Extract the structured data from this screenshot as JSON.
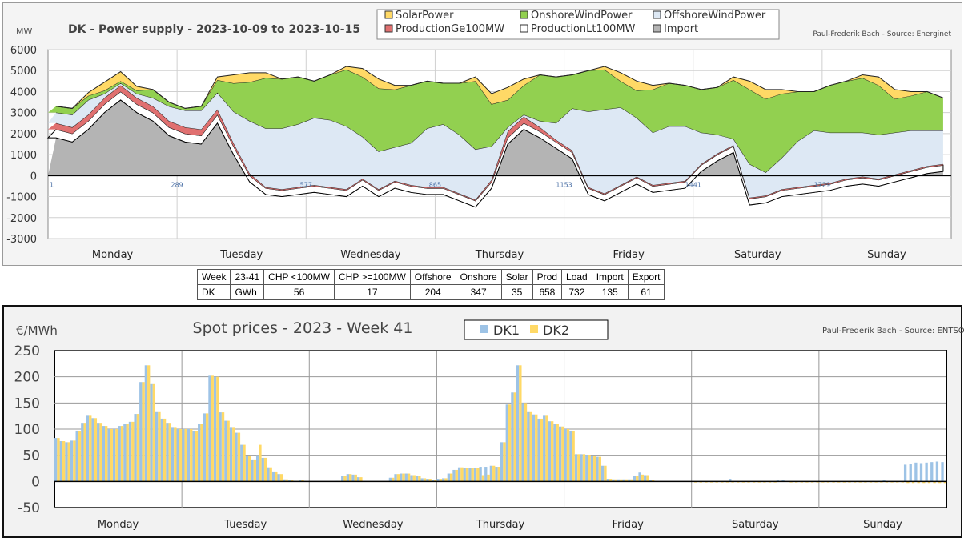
{
  "chart_data": [
    {
      "type": "area",
      "title": "DK - Power supply - 2023-10-09 to 2023-10-15",
      "ylabel": "MW",
      "credit": "Paul-Frederik Bach - Source: Energinet",
      "ylim": [
        -3000,
        6000
      ],
      "yticks": [
        "6000",
        "5000",
        "4000",
        "3000",
        "2000",
        "1000",
        "0",
        "-1000",
        "-2000",
        "-3000"
      ],
      "xticks": [
        "1",
        "289",
        "577",
        "865",
        "1153",
        "1441",
        "1729"
      ],
      "day_labels": [
        "Monday",
        "Tuesday",
        "Wednesday",
        "Thursday",
        "Friday",
        "Saturday",
        "Sunday"
      ],
      "stacked": true,
      "grid": true,
      "legend_position": "top",
      "series": [
        {
          "name": "Import",
          "color": "#b4b4b4",
          "values": [
            1800,
            1600,
            2200,
            3000,
            3600,
            3000,
            2600,
            1900,
            1600,
            1500,
            2500,
            1000,
            -300,
            -900,
            -1000,
            -900,
            -800,
            -900,
            -1000,
            -500,
            -1000,
            -600,
            -800,
            -900,
            -900,
            -1200,
            -1500,
            -600,
            1500,
            2200,
            1800,
            1300,
            800,
            -900,
            -1200,
            -800,
            -400,
            -800,
            -700,
            -600,
            200,
            700,
            1100,
            -1400,
            -1300,
            -1000,
            -900,
            -800,
            -700,
            -500,
            -400,
            -500,
            -300,
            -100,
            100,
            200
          ]
        },
        {
          "name": "ProductionLt100MW",
          "color": "#ffffff",
          "values": [
            400,
            400,
            400,
            400,
            400,
            400,
            400,
            400,
            400,
            400,
            400,
            400,
            300,
            300,
            300,
            300,
            300,
            300,
            300,
            300,
            300,
            300,
            300,
            300,
            300,
            300,
            300,
            300,
            300,
            300,
            300,
            300,
            300,
            300,
            300,
            300,
            300,
            300,
            300,
            300,
            300,
            300,
            300,
            300,
            300,
            300,
            300,
            300,
            300,
            300,
            300,
            300,
            300,
            300,
            300,
            300
          ]
        },
        {
          "name": "ProductionGe100MW",
          "color": "#e07070",
          "values": [
            300,
            300,
            300,
            300,
            300,
            300,
            300,
            300,
            300,
            300,
            250,
            150,
            100,
            50,
            50,
            50,
            50,
            50,
            50,
            50,
            50,
            50,
            50,
            50,
            50,
            50,
            50,
            100,
            300,
            300,
            200,
            100,
            100,
            50,
            50,
            50,
            50,
            50,
            50,
            50,
            50,
            50,
            50,
            50,
            50,
            50,
            50,
            50,
            50,
            50,
            50,
            50,
            50,
            50,
            50,
            50
          ]
        },
        {
          "name": "OffshoreWindPower",
          "color": "#dde8f4",
          "values": [
            500,
            600,
            700,
            200,
            100,
            200,
            400,
            700,
            800,
            900,
            800,
            1500,
            2500,
            2800,
            2900,
            3000,
            3200,
            3200,
            3000,
            2000,
            1800,
            1600,
            2000,
            2800,
            3000,
            2800,
            2400,
            1600,
            200,
            100,
            300,
            800,
            2000,
            3600,
            4000,
            3700,
            2800,
            2500,
            2700,
            2600,
            1500,
            900,
            300,
            1600,
            1100,
            1500,
            2200,
            2600,
            2400,
            2200,
            2100,
            2100,
            2000,
            1900,
            1700,
            1600
          ]
        },
        {
          "name": "OnshoreWindPower",
          "color": "#92d050",
          "values": [
            300,
            300,
            200,
            150,
            100,
            150,
            400,
            200,
            100,
            200,
            600,
            1350,
            1850,
            2400,
            2350,
            2250,
            1750,
            2150,
            2700,
            2850,
            3000,
            2750,
            2750,
            2250,
            1950,
            2450,
            3250,
            2000,
            1300,
            1400,
            2200,
            2200,
            1600,
            1950,
            1900,
            1250,
            1300,
            2050,
            2050,
            1950,
            2050,
            2250,
            2800,
            3550,
            3500,
            3050,
            2350,
            1850,
            2250,
            2450,
            2600,
            2350,
            1600,
            1650,
            1850,
            1550
          ]
        },
        {
          "name": "SolarPower",
          "color": "#ffd966",
          "values": [
            0,
            0,
            150,
            400,
            450,
            200,
            0,
            0,
            0,
            0,
            150,
            400,
            450,
            250,
            0,
            0,
            0,
            0,
            150,
            400,
            450,
            200,
            0,
            0,
            0,
            0,
            200,
            500,
            600,
            300,
            0,
            0,
            0,
            0,
            150,
            400,
            450,
            200,
            0,
            0,
            0,
            0,
            150,
            400,
            450,
            200,
            0,
            0,
            0,
            0,
            150,
            400,
            450,
            200,
            0,
            0
          ]
        }
      ],
      "legend": [
        "SolarPower",
        "OnshoreWindPower",
        "OffshoreWindPower",
        "ProductionGe100MW",
        "ProductionLt100MW",
        "Import"
      ]
    },
    {
      "type": "bar",
      "title": "Spot prices - 2023 - Week 41",
      "ylabel": "€/MWh",
      "credit": "Paul-Frederik Bach - Source: ENTSO-E",
      "ylim": [
        -50,
        250
      ],
      "yticks": [
        "250",
        "200",
        "150",
        "100",
        "50",
        "0",
        "-50"
      ],
      "day_labels": [
        "Monday",
        "Tuesday",
        "Wednesday",
        "Thursday",
        "Friday",
        "Saturday",
        "Sunday"
      ],
      "grid": true,
      "legend_position": "top",
      "series": [
        {
          "name": "DK1",
          "color": "#9dc3e6",
          "values": [
            83,
            77,
            75,
            78,
            97,
            112,
            127,
            121,
            112,
            106,
            100,
            100,
            106,
            110,
            114,
            129,
            190,
            222,
            186,
            134,
            120,
            112,
            104,
            100,
            100,
            100,
            97,
            110,
            130,
            202,
            200,
            132,
            116,
            104,
            93,
            70,
            48,
            42,
            50,
            45,
            27,
            19,
            14,
            4,
            2,
            1,
            2,
            0,
            0,
            0,
            0,
            0,
            0,
            1,
            10,
            14,
            13,
            8,
            0,
            0,
            -1,
            -1,
            0,
            7,
            14,
            15,
            15,
            12,
            10,
            6,
            5,
            3,
            5,
            6,
            15,
            22,
            27,
            26,
            25,
            26,
            28,
            28,
            30,
            28,
            75,
            147,
            170,
            222,
            150,
            134,
            128,
            120,
            127,
            115,
            110,
            105,
            100,
            97,
            52,
            52,
            51,
            48,
            47,
            30,
            5,
            4,
            4,
            4,
            4,
            10,
            17,
            12,
            3,
            0,
            -1,
            -1,
            -1,
            -1,
            -1,
            -1,
            -1,
            -1,
            -1,
            -1,
            -1,
            -1,
            -1,
            5,
            -1,
            -1,
            -1,
            -1,
            -1,
            -1,
            -1,
            -1,
            2,
            2,
            0,
            0,
            -1,
            -1,
            -1,
            -1,
            -1,
            -1,
            -1,
            -1,
            -1,
            -1,
            0,
            1,
            0,
            0,
            1,
            1,
            2,
            0,
            0,
            0,
            32,
            33,
            36,
            35,
            36,
            37,
            38,
            37
          ]
        },
        {
          "name": "DK2",
          "color": "#ffd966",
          "values": [
            83,
            77,
            75,
            78,
            97,
            112,
            127,
            121,
            112,
            106,
            100,
            100,
            106,
            110,
            114,
            129,
            190,
            222,
            186,
            134,
            120,
            112,
            104,
            100,
            100,
            100,
            97,
            110,
            130,
            202,
            200,
            132,
            116,
            104,
            93,
            70,
            48,
            42,
            70,
            45,
            27,
            19,
            14,
            4,
            2,
            1,
            2,
            0,
            0,
            0,
            0,
            0,
            0,
            1,
            10,
            14,
            13,
            8,
            0,
            0,
            -1,
            -1,
            0,
            7,
            14,
            15,
            15,
            12,
            10,
            6,
            5,
            3,
            5,
            6,
            15,
            22,
            27,
            26,
            25,
            26,
            12,
            13,
            30,
            28,
            75,
            147,
            170,
            222,
            150,
            134,
            128,
            120,
            127,
            115,
            110,
            105,
            100,
            97,
            52,
            52,
            51,
            48,
            47,
            30,
            5,
            4,
            4,
            4,
            4,
            10,
            13,
            12,
            3,
            0,
            -1,
            -1,
            -1,
            -1,
            -1,
            -1,
            -2,
            -2,
            -2,
            -2,
            -2,
            -2,
            -2,
            -2,
            -2,
            -2,
            -2,
            -2,
            -2,
            -2,
            -2,
            -2,
            -1,
            -1,
            -2,
            -2,
            -2,
            -2,
            -2,
            -2,
            -2,
            -2,
            -2,
            -2,
            -2,
            -2,
            -2,
            -2,
            -2,
            -2,
            -2,
            -2,
            -2,
            -2,
            -2,
            -2,
            -3,
            -3,
            -3,
            -3,
            -3,
            -3,
            -3,
            -3
          ]
        }
      ]
    }
  ],
  "table": {
    "header": [
      "Week",
      "23-41",
      "CHP <100MW",
      "CHP >=100MW",
      "Offshore",
      "Onshore",
      "Solar",
      "Prod",
      "Load",
      "Import",
      "Export"
    ],
    "row": [
      "DK",
      "GWh",
      "56",
      "17",
      "204",
      "347",
      "35",
      "658",
      "732",
      "135",
      "61"
    ]
  }
}
